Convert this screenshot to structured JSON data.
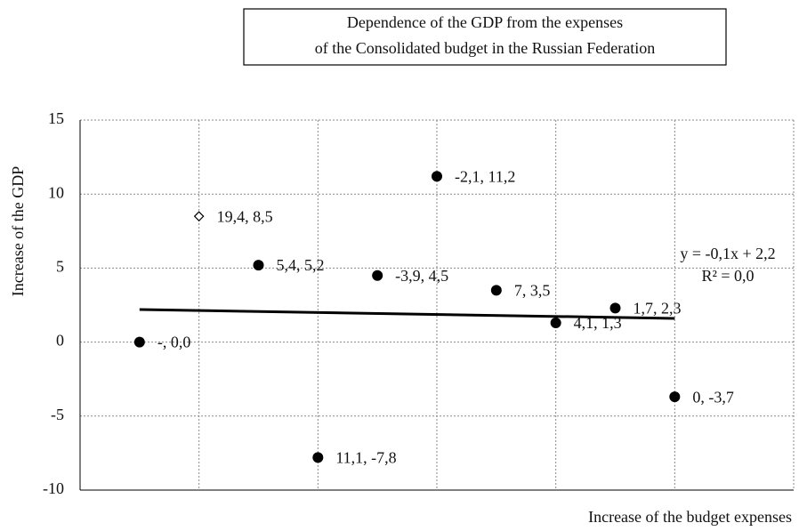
{
  "chart_data": {
    "type": "scatter",
    "title": [
      "Dependence of the GDP from the expenses",
      "of the Consolidated budget in the Russian Federation"
    ],
    "x_label": "Increase of the budget expenses",
    "y_label": "Increase of the GDP",
    "x": [
      1,
      2,
      3,
      4,
      5,
      6,
      7,
      8,
      9,
      10
    ],
    "values": [
      0,
      8.5,
      5.2,
      -7.8,
      4.5,
      11.2,
      3.5,
      1.3,
      2.3,
      -3.7
    ],
    "value_labels": [
      "-, 0,0",
      "19,4, 8,5",
      "5,4, 5,2",
      "11,1, -7,8",
      "-3,9, 4,5",
      "-2,1, 11,2",
      "7, 3,5",
      "4,1, 1,3",
      "1,7, 2,3",
      "0, -3,7"
    ],
    "markers": [
      "circle",
      "diamond",
      "circle",
      "circle",
      "circle",
      "circle",
      "circle",
      "circle",
      "circle",
      "circle"
    ],
    "color": "#000000",
    "xlim": [
      0,
      12
    ],
    "xticks": [
      0,
      2,
      4,
      6,
      8,
      10,
      12
    ],
    "ylim": [
      -10,
      15
    ],
    "yticks": [
      -10,
      -5,
      0,
      5,
      10,
      15
    ],
    "grid": true,
    "trendline": {
      "x": [
        1,
        10
      ],
      "y": [
        2.2,
        1.6
      ],
      "equation": "y = -0,1x + 2,2",
      "r2": "R² = 0,0"
    }
  }
}
